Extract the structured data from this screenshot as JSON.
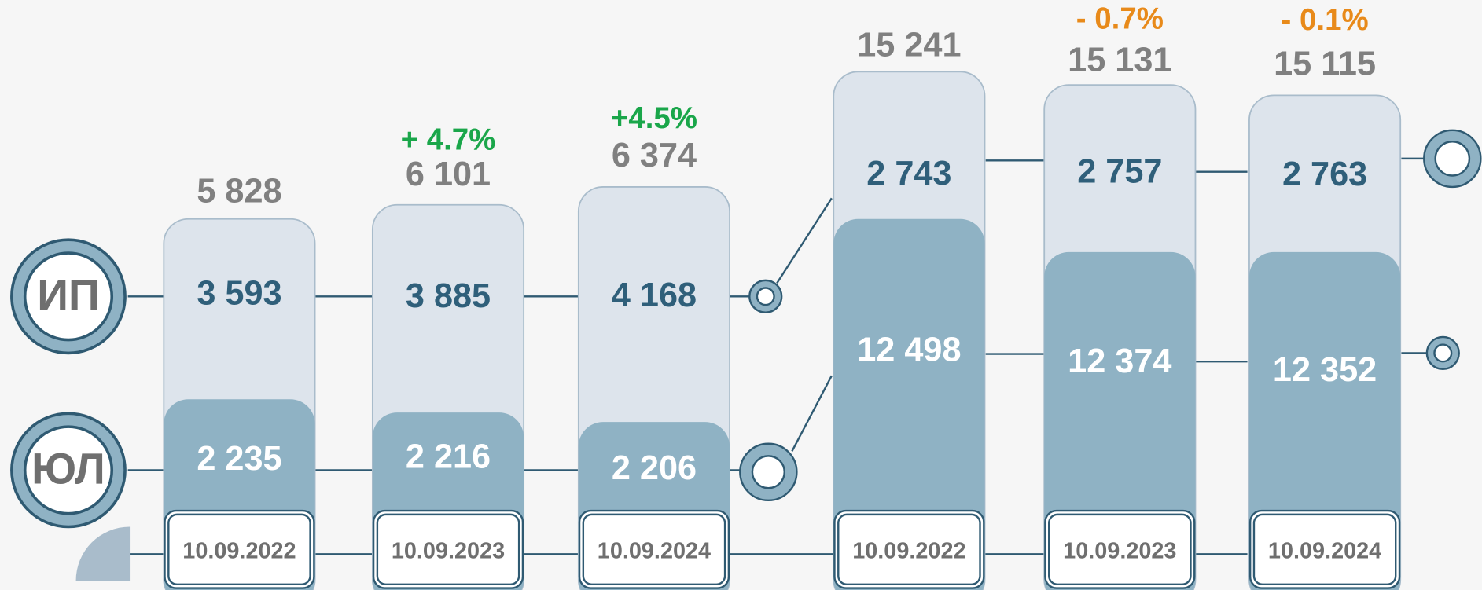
{
  "legend": {
    "ip": "ИП",
    "ul": "ЮЛ"
  },
  "columns": [
    {
      "total": "5 828",
      "ip": "3 593",
      "ul": "2 235",
      "date": "10.09.2022"
    },
    {
      "change": "+ 4.7%",
      "total": "6 101",
      "ip": "3 885",
      "ul": "2 216",
      "date": "10.09.2023"
    },
    {
      "change": "+4.5%",
      "total": "6 374",
      "ip": "4 168",
      "ul": "2 206",
      "date": "10.09.2024"
    },
    {
      "total": "15 241",
      "ip": "2 743",
      "ul": "12 498",
      "date": "10.09.2022"
    },
    {
      "change": "- 0.7%",
      "total": "15 131",
      "ip": "2 757",
      "ul": "12 374",
      "date": "10.09.2023"
    },
    {
      "change": "- 0.1%",
      "total": "15 115",
      "ip": "2 763",
      "ul": "12 352",
      "date": "10.09.2024"
    }
  ]
}
